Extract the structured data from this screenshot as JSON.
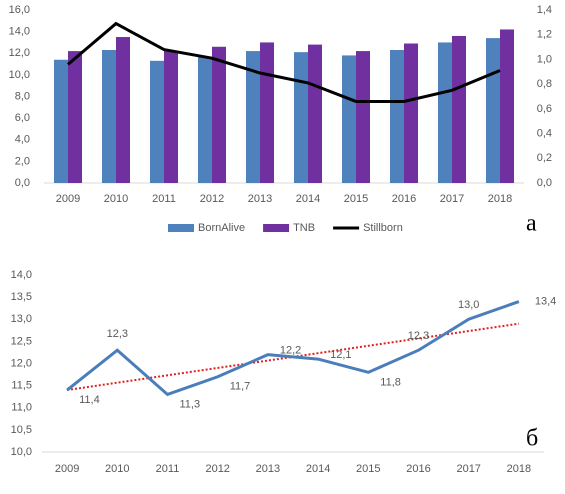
{
  "chart_data": [
    {
      "type": "bar",
      "categories": [
        "2009",
        "2010",
        "2011",
        "2012",
        "2013",
        "2014",
        "2015",
        "2016",
        "2017",
        "2018"
      ],
      "series": [
        {
          "name": "BornAlive",
          "color": "#4f81bd",
          "values": [
            11.4,
            12.3,
            11.3,
            11.7,
            12.2,
            12.1,
            11.8,
            12.3,
            13.0,
            13.4
          ]
        },
        {
          "name": "TNB",
          "color": "#7030a0",
          "values": [
            12.2,
            13.5,
            12.2,
            12.6,
            13.0,
            12.8,
            12.2,
            12.9,
            13.6,
            14.2
          ]
        },
        {
          "name": "Stillborn",
          "color": "#000000",
          "axis": "y2",
          "values": [
            0.96,
            1.29,
            1.08,
            1.01,
            0.89,
            0.81,
            0.66,
            0.66,
            0.75,
            0.91
          ]
        }
      ],
      "ylim": [
        0,
        16
      ],
      "yticks": [
        {
          "value": 0,
          "label": "0,0"
        },
        {
          "value": 2,
          "label": "2,0"
        },
        {
          "value": 4,
          "label": "4,0"
        },
        {
          "value": 6,
          "label": "6,0"
        },
        {
          "value": 8,
          "label": "8,0"
        },
        {
          "value": 10,
          "label": "10,0"
        },
        {
          "value": 12,
          "label": "12,0"
        },
        {
          "value": 14,
          "label": "14,0"
        },
        {
          "value": 16,
          "label": "16,0"
        }
      ],
      "y2lim": [
        0,
        1.4
      ],
      "y2ticks": [
        {
          "value": 0,
          "label": "0,0"
        },
        {
          "value": 0.2,
          "label": "0,2"
        },
        {
          "value": 0.4,
          "label": "0,4"
        },
        {
          "value": 0.6,
          "label": "0,6"
        },
        {
          "value": 0.8,
          "label": "0,8"
        },
        {
          "value": 1,
          "label": "1,0"
        },
        {
          "value": 1.2,
          "label": "1,2"
        },
        {
          "value": 1.4,
          "label": "1,4"
        }
      ],
      "legend": "bottom",
      "annotation": "а"
    },
    {
      "type": "line",
      "categories": [
        "2009",
        "2010",
        "2011",
        "2012",
        "2013",
        "2014",
        "2015",
        "2016",
        "2017",
        "2018"
      ],
      "color": "#4a7ebb",
      "values": [
        11.4,
        12.3,
        11.3,
        11.7,
        12.2,
        12.1,
        11.8,
        12.3,
        13.0,
        13.4
      ],
      "value_labels": [
        "11,4",
        "12,3",
        "11,3",
        "11,7",
        "12,2",
        "12,1",
        "11,8",
        "12,3",
        "13,0",
        "13,4"
      ],
      "trend": {
        "color": "#e02020",
        "values": [
          11.4,
          12.9
        ]
      },
      "ylim": [
        10,
        14
      ],
      "yticks": [
        {
          "value": 10,
          "label": "10,0"
        },
        {
          "value": 10.5,
          "label": "10,5"
        },
        {
          "value": 11,
          "label": "11,0"
        },
        {
          "value": 11.5,
          "label": "11,5"
        },
        {
          "value": 12,
          "label": "12,0"
        },
        {
          "value": 12.5,
          "label": "12,5"
        },
        {
          "value": 13,
          "label": "13,0"
        },
        {
          "value": 13.5,
          "label": "13,5"
        },
        {
          "value": 14,
          "label": "14,0"
        }
      ],
      "annotation": "б"
    }
  ]
}
